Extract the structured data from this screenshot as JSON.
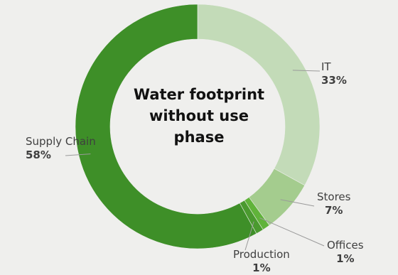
{
  "chart_data": {
    "type": "pie",
    "variant": "donut",
    "title": "Water footprint without use phase",
    "slices": [
      {
        "name": "IT",
        "label": "IT",
        "value": 33,
        "value_label": "33%",
        "color": "#c3dbb8"
      },
      {
        "name": "Stores",
        "label": "Stores",
        "value": 7,
        "value_label": "7%",
        "color": "#a4cc8e"
      },
      {
        "name": "Offices",
        "label": "Offices",
        "value": 1,
        "value_label": "1%",
        "color": "#60b33a"
      },
      {
        "name": "Production",
        "label": "Production",
        "value": 1,
        "value_label": "1%",
        "color": "#4a9a2f"
      },
      {
        "name": "Supply Chain",
        "label": "Supply Chain",
        "value": 58,
        "value_label": "58%",
        "color": "#3e8f28"
      }
    ],
    "legend": "none"
  }
}
